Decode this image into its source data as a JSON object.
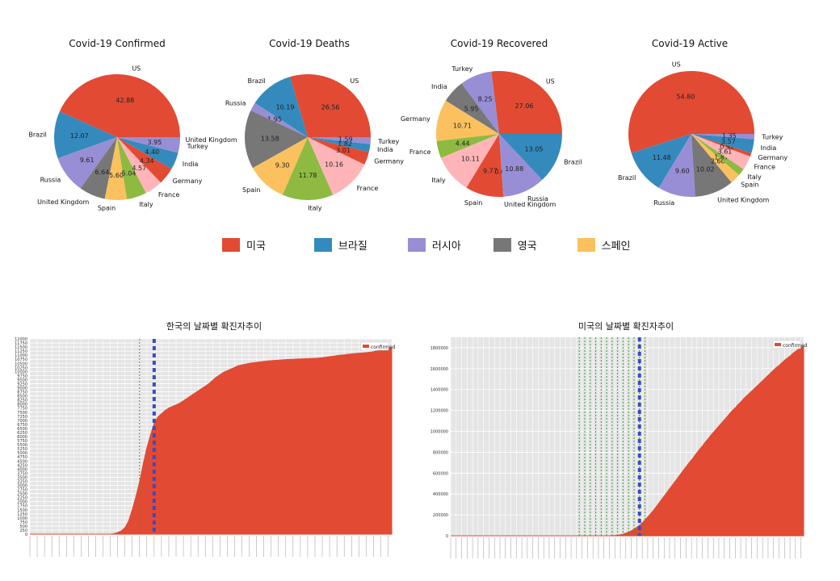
{
  "chart_data": [
    {
      "type": "pie",
      "title": "Covid-19 Confirmed",
      "colors": [
        "#e24a33",
        "#348abd",
        "#988ed5",
        "#777777",
        "#fbc15e",
        "#8eba42",
        "#ffb5b8",
        "#e24a33",
        "#348abd",
        "#988ed5"
      ],
      "slices": [
        {
          "label": "US",
          "value": 42.88
        },
        {
          "label": "Brazil",
          "value": 12.07
        },
        {
          "label": "Russia",
          "value": 9.61
        },
        {
          "label": "United Kingdom",
          "value": 6.64
        },
        {
          "label": "Spain",
          "value": 5.6
        },
        {
          "label": "Italy",
          "value": 5.04
        },
        {
          "label": "France",
          "value": 4.57
        },
        {
          "label": "Germany",
          "value": 4.34
        },
        {
          "label": "India",
          "value": 4.4
        },
        {
          "label": "Turkey",
          "value": 3.95
        }
      ]
    },
    {
      "type": "pie",
      "title": "Covid-19 Deaths",
      "colors": [
        "#e24a33",
        "#348abd",
        "#988ed5",
        "#777777",
        "#fbc15e",
        "#8eba42",
        "#ffb5b8",
        "#e24a33",
        "#348abd",
        "#988ed5"
      ],
      "slices": [
        {
          "label": "US",
          "value": 26.56
        },
        {
          "label": "Brazil",
          "value": 10.19
        },
        {
          "label": "Russia",
          "value": 1.95
        },
        {
          "label": "United Kingdom",
          "value": 13.58
        },
        {
          "label": "Spain",
          "value": 9.3
        },
        {
          "label": "Italy",
          "value": 11.78
        },
        {
          "label": "France",
          "value": 10.16
        },
        {
          "label": "Germany",
          "value": 3.01
        },
        {
          "label": "India",
          "value": 1.82
        },
        {
          "label": "Turkey",
          "value": 1.59
        }
      ]
    },
    {
      "type": "pie",
      "title": "Covid-19 Recovered",
      "colors": [
        "#e24a33",
        "#988ed5",
        "#777777",
        "#fbc15e",
        "#8eba42",
        "#ffb5b8",
        "#e24a33",
        "#348abd",
        "#988ed5",
        "#348abd"
      ],
      "slices": [
        {
          "label": "US",
          "value": 27.06
        },
        {
          "label": "Turkey",
          "value": 8.25
        },
        {
          "label": "India",
          "value": 5.95
        },
        {
          "label": "Germany",
          "value": 10.71
        },
        {
          "label": "France",
          "value": 4.44
        },
        {
          "label": "Italy",
          "value": 10.11
        },
        {
          "label": "Spain",
          "value": 9.77
        },
        {
          "label": "United Kingdom",
          "value": 0.08
        },
        {
          "label": "Russia",
          "value": 10.88
        },
        {
          "label": "Brazil",
          "value": 13.05
        }
      ]
    },
    {
      "type": "pie",
      "title": "Covid-19 Active",
      "colors": [
        "#e24a33",
        "#348abd",
        "#988ed5",
        "#777777",
        "#fbc15e",
        "#8eba42",
        "#ffb5b8",
        "#e24a33",
        "#348abd",
        "#988ed5"
      ],
      "slices": [
        {
          "label": "US",
          "value": 54.8
        },
        {
          "label": "Brazil",
          "value": 11.48
        },
        {
          "label": "Russia",
          "value": 9.6
        },
        {
          "label": "United Kingdom",
          "value": 10.02
        },
        {
          "label": "Spain",
          "value": 2.66
        },
        {
          "label": "Italy",
          "value": 1.87
        },
        {
          "label": "France",
          "value": 3.61
        },
        {
          "label": "Germany",
          "value": 0.92
        },
        {
          "label": "India",
          "value": 3.57
        },
        {
          "label": "Turkey",
          "value": 1.35
        }
      ]
    },
    {
      "type": "area",
      "title": "한국의 날짜별 확진자추이",
      "legend": "confirmed",
      "ylim": [
        0,
        12000
      ],
      "yticks": [
        0,
        250,
        500,
        750,
        1000,
        1250,
        1500,
        1750,
        2000,
        2250,
        2500,
        2750,
        3000,
        3250,
        3500,
        3750,
        4000,
        4250,
        4500,
        4750,
        5000,
        5250,
        5500,
        5750,
        6000,
        6250,
        6500,
        6750,
        7000,
        7250,
        7500,
        7750,
        8000,
        8250,
        8500,
        8750,
        9000,
        9250,
        9500,
        9750,
        10000,
        10250,
        10500,
        10750,
        11000,
        11250,
        11500,
        11750,
        12000
      ],
      "n_points": 100,
      "y": [
        0,
        0,
        0,
        0,
        0,
        0,
        0,
        0,
        0,
        0,
        0,
        0,
        0,
        0,
        0,
        0,
        0,
        0,
        0,
        0,
        0,
        0,
        0,
        30,
        100,
        200,
        400,
        800,
        1500,
        2300,
        3200,
        4300,
        5300,
        6100,
        6800,
        7200,
        7400,
        7600,
        7750,
        7850,
        7950,
        8050,
        8200,
        8350,
        8500,
        8650,
        8800,
        8950,
        9100,
        9250,
        9450,
        9650,
        9800,
        9950,
        10050,
        10150,
        10250,
        10350,
        10400,
        10450,
        10500,
        10530,
        10560,
        10590,
        10620,
        10640,
        10660,
        10680,
        10700,
        10720,
        10730,
        10740,
        10750,
        10760,
        10770,
        10780,
        10790,
        10800,
        10810,
        10820,
        10850,
        10880,
        10910,
        10940,
        10980,
        11000,
        11020,
        11050,
        11080,
        11100,
        11120,
        11140,
        11160,
        11180,
        11220,
        11260,
        11300,
        11340,
        11380,
        11450
      ]
    },
    {
      "type": "area",
      "title": "미국의 날짜별 확진자추이",
      "legend": "confirmed",
      "ylim": [
        0,
        1900000
      ],
      "yticks": [
        0,
        200000,
        400000,
        600000,
        800000,
        1000000,
        1200000,
        1400000,
        1600000,
        1800000
      ],
      "n_points": 130,
      "y": [
        0,
        0,
        0,
        0,
        0,
        0,
        0,
        0,
        0,
        0,
        0,
        0,
        0,
        0,
        0,
        0,
        0,
        0,
        0,
        0,
        0,
        0,
        0,
        0,
        0,
        0,
        0,
        0,
        0,
        0,
        0,
        0,
        0,
        0,
        0,
        0,
        0,
        0,
        0,
        0,
        0,
        0,
        0,
        0,
        0,
        0,
        0,
        0,
        0,
        0,
        0,
        0,
        0,
        0,
        0,
        0,
        0,
        100,
        500,
        1500,
        3000,
        6000,
        10000,
        16000,
        25000,
        35000,
        48000,
        63000,
        82000,
        100000,
        125000,
        150000,
        180000,
        210000,
        240000,
        275000,
        310000,
        345000,
        380000,
        415000,
        450000,
        485000,
        520000,
        555000,
        590000,
        625000,
        660000,
        695000,
        725000,
        760000,
        795000,
        830000,
        860000,
        895000,
        925000,
        960000,
        990000,
        1020000,
        1050000,
        1080000,
        1110000,
        1140000,
        1170000,
        1200000,
        1225000,
        1255000,
        1280000,
        1310000,
        1335000,
        1360000,
        1385000,
        1410000,
        1435000,
        1460000,
        1485000,
        1510000,
        1535000,
        1560000,
        1585000,
        1610000,
        1630000,
        1655000,
        1680000,
        1700000,
        1720000,
        1745000,
        1765000,
        1785000,
        1800000,
        1815000
      ]
    }
  ],
  "legend_items": [
    {
      "label": "미국",
      "color": "#e24a33"
    },
    {
      "label": "브라질",
      "color": "#348abd"
    },
    {
      "label": "러시아",
      "color": "#988ed5"
    },
    {
      "label": "영국",
      "color": "#777777"
    },
    {
      "label": "스페인",
      "color": "#fbc15e"
    }
  ]
}
